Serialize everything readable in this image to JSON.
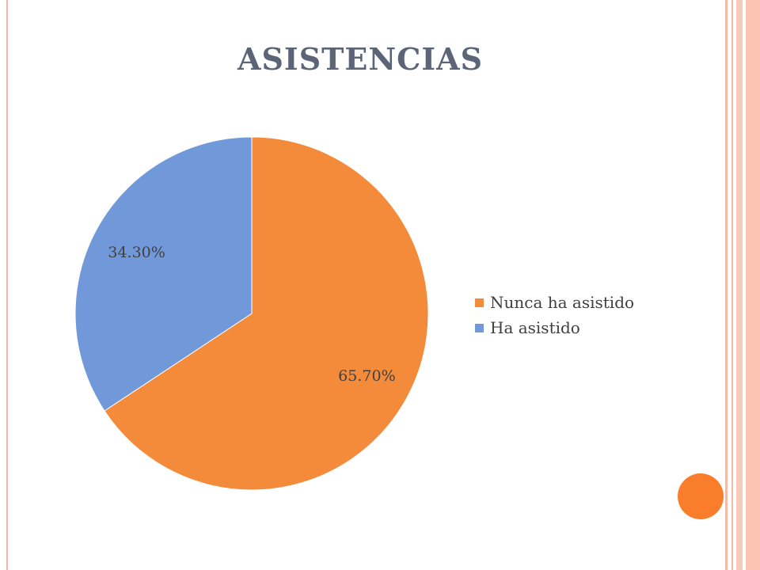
{
  "colors": {
    "nunca": "#f38b3b",
    "asistido": "#7199d9",
    "accent_dot": "#fa7d2b"
  },
  "chart_data": {
    "type": "pie",
    "title": "ASISTENCIAS",
    "slices": [
      {
        "label": "Nunca ha asistido",
        "value": 65.7,
        "value_label": "65.70%",
        "color": "#f38b3b"
      },
      {
        "label": "Ha asistido",
        "value": 34.3,
        "value_label": "34.30%",
        "color": "#7199d9"
      }
    ],
    "start_angle": "top",
    "direction": "clockwise",
    "legend": "right"
  }
}
